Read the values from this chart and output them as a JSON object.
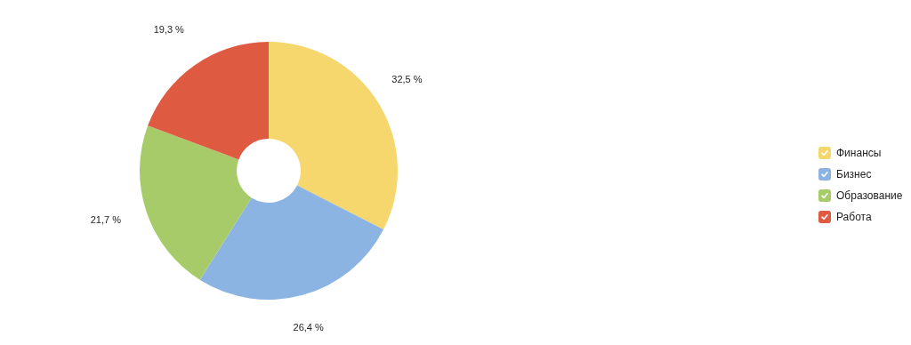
{
  "chart_data": {
    "type": "donut",
    "categories": [
      "Финансы",
      "Бизнес",
      "Образование",
      "Работа"
    ],
    "values": [
      32.5,
      26.4,
      21.7,
      19.3
    ],
    "value_labels": [
      "32,5 %",
      "26,4 %",
      "21,7 %",
      "19,3 %"
    ],
    "colors": [
      "#f5d76e",
      "#8cb4e3",
      "#a8cb6a",
      "#de5b42"
    ],
    "legend": "right"
  }
}
